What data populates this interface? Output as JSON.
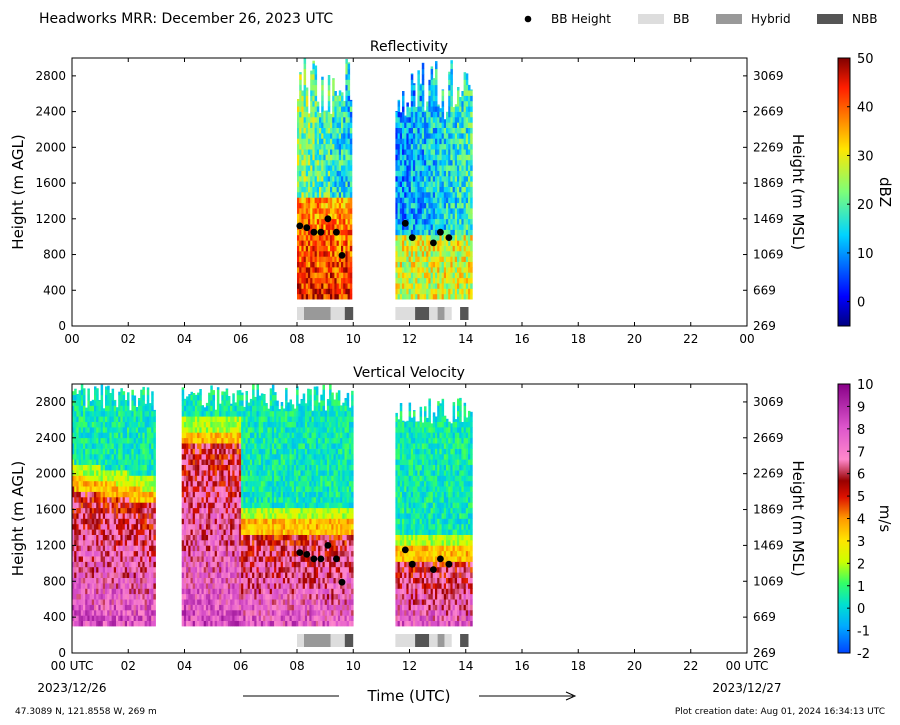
{
  "header": {
    "title": "Headworks MRR:  December 26, 2023 UTC",
    "legend": [
      {
        "label": "BB Height",
        "kind": "dot",
        "color": "#000000"
      },
      {
        "label": "BB",
        "kind": "box",
        "color": "#dddddd"
      },
      {
        "label": "Hybrid",
        "kind": "box",
        "color": "#999999"
      },
      {
        "label": "NBB",
        "kind": "box",
        "color": "#555555"
      }
    ]
  },
  "footer": {
    "location": "47.3089 N, 121.8558 W, 269 m",
    "creation": "Plot creation date: Aug 01, 2024 16:34:13 UTC",
    "xlabel": "Time (UTC)",
    "start_date": "2023/12/26",
    "end_date": "2023/12/27"
  },
  "chart_data": [
    {
      "type": "heatmap",
      "title": "Reflectivity",
      "ylabel": "Height (m AGL)",
      "ylabel_right": "Height (m MSL)",
      "xlim": [
        0,
        24
      ],
      "ylim": [
        0,
        3000
      ],
      "x_ticks": [
        "00",
        "02",
        "04",
        "06",
        "08",
        "10",
        "12",
        "14",
        "16",
        "18",
        "20",
        "22",
        "00"
      ],
      "y_ticks": [
        0,
        400,
        800,
        1200,
        1600,
        2000,
        2400,
        2800
      ],
      "y_ticks_right": [
        269,
        669,
        1069,
        1469,
        1869,
        2269,
        2669,
        3069
      ],
      "colorbar": {
        "label": "dBZ",
        "min": -5,
        "max": 50,
        "ticks": [
          0,
          10,
          20,
          30,
          40,
          50
        ],
        "colormap": "jet"
      },
      "data_segments": [
        {
          "x_start": 8.0,
          "x_end": 9.9,
          "y_top": 3000,
          "summary": "high reflectivity (35-50 dBZ) below ~1400 m, 15-30 dBZ aloft"
        },
        {
          "x_start": 11.5,
          "x_end": 14.2,
          "y_top": 3000,
          "summary": "mostly 0-20 dBZ, 25-40 dBZ below ~1000 m"
        }
      ],
      "bb_height": [
        {
          "x": 8.1,
          "y": 1120
        },
        {
          "x": 8.35,
          "y": 1100
        },
        {
          "x": 8.6,
          "y": 1050
        },
        {
          "x": 8.85,
          "y": 1050
        },
        {
          "x": 9.1,
          "y": 1200
        },
        {
          "x": 9.4,
          "y": 1050
        },
        {
          "x": 9.6,
          "y": 790
        },
        {
          "x": 11.85,
          "y": 1150
        },
        {
          "x": 12.1,
          "y": 990
        },
        {
          "x": 12.85,
          "y": 930
        },
        {
          "x": 13.1,
          "y": 1050
        },
        {
          "x": 13.4,
          "y": 990
        }
      ],
      "bb_type_bar": [
        {
          "x_start": 8.0,
          "x_end": 8.25,
          "class": "BB"
        },
        {
          "x_start": 8.25,
          "x_end": 9.2,
          "class": "Hybrid"
        },
        {
          "x_start": 9.2,
          "x_end": 9.7,
          "class": "BB"
        },
        {
          "x_start": 9.7,
          "x_end": 10.0,
          "class": "NBB"
        },
        {
          "x_start": 11.5,
          "x_end": 12.2,
          "class": "BB"
        },
        {
          "x_start": 12.2,
          "x_end": 12.7,
          "class": "NBB"
        },
        {
          "x_start": 12.7,
          "x_end": 13.0,
          "class": "BB"
        },
        {
          "x_start": 13.0,
          "x_end": 13.25,
          "class": "Hybrid"
        },
        {
          "x_start": 13.25,
          "x_end": 13.5,
          "class": "BB"
        },
        {
          "x_start": 13.8,
          "x_end": 14.1,
          "class": "NBB"
        }
      ]
    },
    {
      "type": "heatmap",
      "title": "Vertical Velocity",
      "ylabel": "Height (m AGL)",
      "ylabel_right": "Height (m MSL)",
      "xlim": [
        0,
        24
      ],
      "ylim": [
        0,
        3000
      ],
      "x_ticks": [
        "00 UTC",
        "02",
        "04",
        "06",
        "08",
        "10",
        "12",
        "14",
        "16",
        "18",
        "20",
        "22",
        "00 UTC"
      ],
      "y_ticks": [
        0,
        400,
        800,
        1200,
        1600,
        2000,
        2400,
        2800
      ],
      "y_ticks_right": [
        269,
        669,
        1069,
        1469,
        1869,
        2269,
        2669,
        3069
      ],
      "colorbar": {
        "label": "m/s",
        "min": -2,
        "max": 10,
        "ticks": [
          -2,
          -1,
          0,
          1,
          2,
          3,
          4,
          5,
          6,
          7,
          8,
          9,
          10
        ],
        "colormap": "jet-magenta"
      },
      "data_segments": [
        {
          "x_start": 0.0,
          "x_end": 2.9,
          "y_top": 3000,
          "summary": "snow aloft (~0-1 m/s), rain 5-9 m/s below ~1800 m"
        },
        {
          "x_start": 3.9,
          "x_end": 10.0,
          "y_top": 3000,
          "summary": "snow aloft, rain 5-9 m/s below ~1300 m after 06"
        },
        {
          "x_start": 11.5,
          "x_end": 14.2,
          "y_top": 2850,
          "summary": "snow aloft, rain 4-7 m/s below ~1000 m"
        }
      ],
      "bb_height": [
        {
          "x": 8.1,
          "y": 1120
        },
        {
          "x": 8.35,
          "y": 1100
        },
        {
          "x": 8.6,
          "y": 1050
        },
        {
          "x": 8.85,
          "y": 1050
        },
        {
          "x": 9.1,
          "y": 1200
        },
        {
          "x": 9.4,
          "y": 1050
        },
        {
          "x": 9.6,
          "y": 790
        },
        {
          "x": 11.85,
          "y": 1150
        },
        {
          "x": 12.1,
          "y": 990
        },
        {
          "x": 12.85,
          "y": 930
        },
        {
          "x": 13.1,
          "y": 1050
        },
        {
          "x": 13.4,
          "y": 990
        }
      ],
      "bb_type_bar": [
        {
          "x_start": 8.0,
          "x_end": 8.25,
          "class": "BB"
        },
        {
          "x_start": 8.25,
          "x_end": 9.2,
          "class": "Hybrid"
        },
        {
          "x_start": 9.2,
          "x_end": 9.7,
          "class": "BB"
        },
        {
          "x_start": 9.7,
          "x_end": 10.0,
          "class": "NBB"
        },
        {
          "x_start": 11.5,
          "x_end": 12.2,
          "class": "BB"
        },
        {
          "x_start": 12.2,
          "x_end": 12.7,
          "class": "NBB"
        },
        {
          "x_start": 12.7,
          "x_end": 13.0,
          "class": "BB"
        },
        {
          "x_start": 13.0,
          "x_end": 13.25,
          "class": "Hybrid"
        },
        {
          "x_start": 13.25,
          "x_end": 13.5,
          "class": "BB"
        },
        {
          "x_start": 13.8,
          "x_end": 14.1,
          "class": "NBB"
        }
      ]
    }
  ]
}
